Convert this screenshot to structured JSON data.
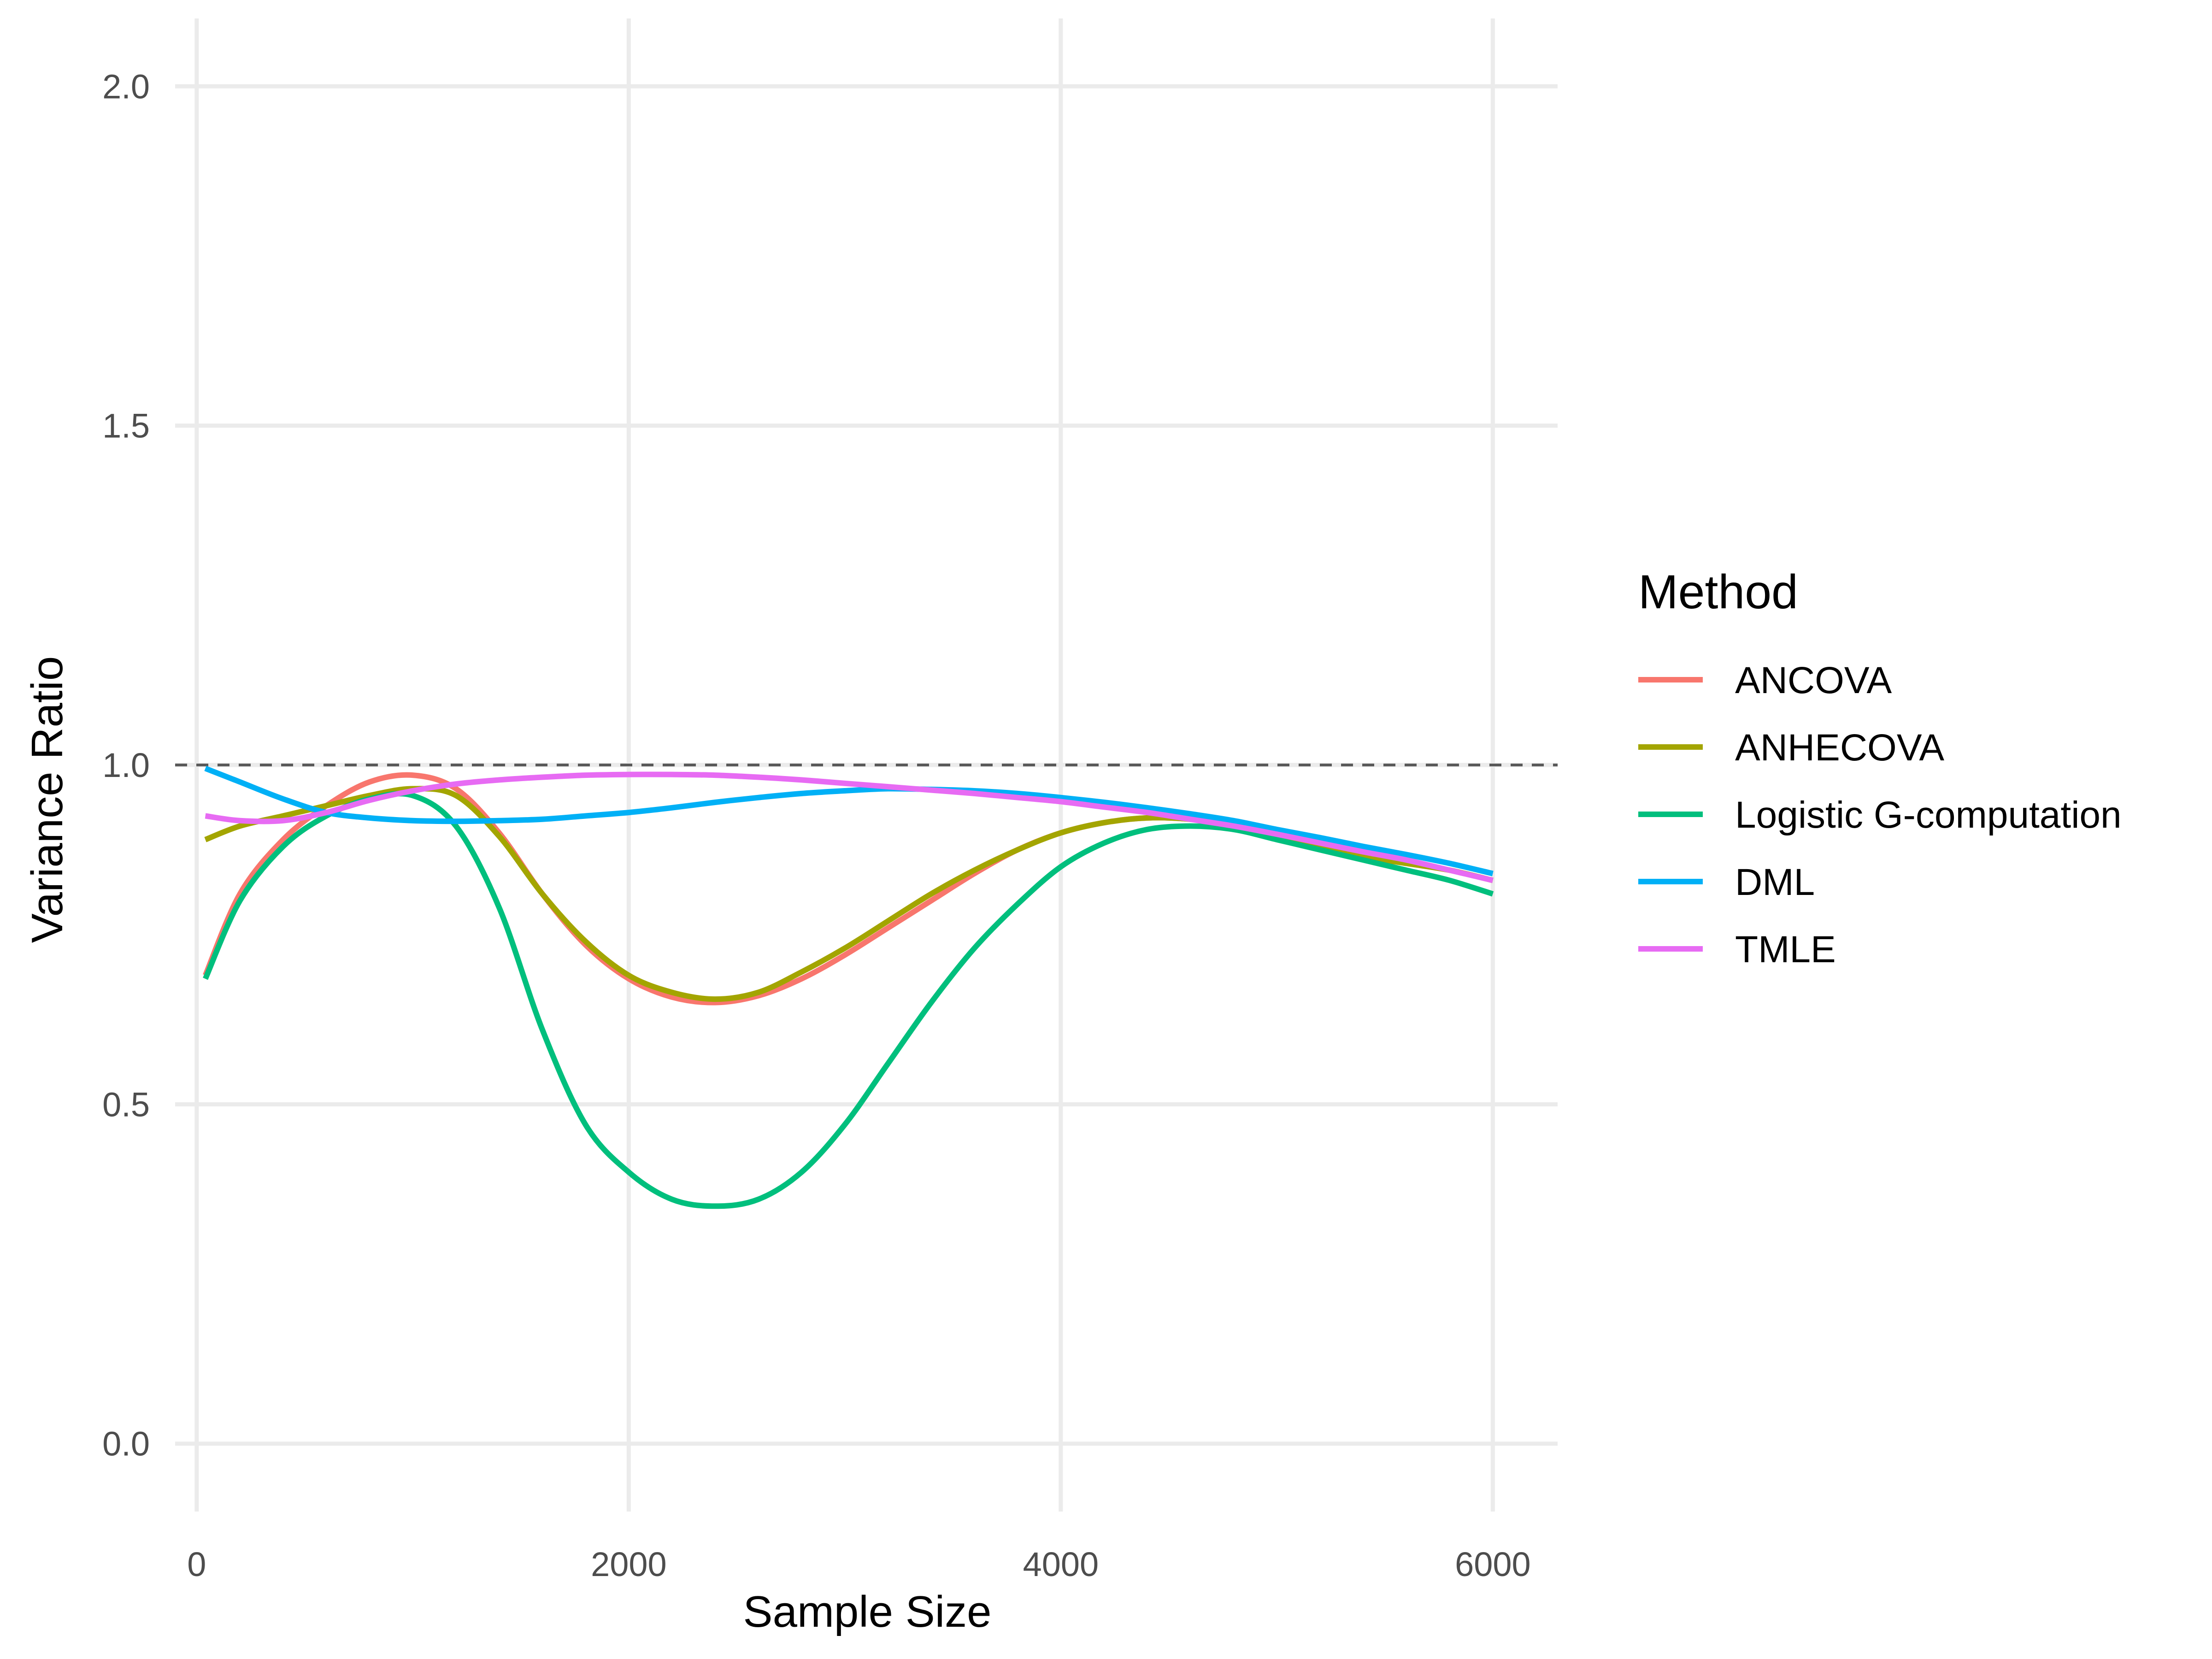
{
  "chart_data": {
    "type": "line",
    "title": "",
    "xlabel": "Sample Size",
    "ylabel": "Variance Ratio",
    "xlim": [
      -100,
      6300
    ],
    "ylim": [
      -0.1,
      2.1
    ],
    "x_ticks": [
      0,
      2000,
      4000,
      6000
    ],
    "x_tick_labels": [
      "0",
      "2000",
      "4000",
      "6000"
    ],
    "y_ticks": [
      0.0,
      0.5,
      1.0,
      1.5,
      2.0
    ],
    "y_tick_labels": [
      "0.0",
      "0.5",
      "1.0",
      "1.5",
      "2.0"
    ],
    "grid": true,
    "reference_line": {
      "y": 1.0,
      "style": "dashed",
      "color": "#5a5a5a"
    },
    "legend": {
      "title": "Method",
      "position": "right"
    },
    "series": [
      {
        "name": "ANCOVA",
        "color": "#F8766D",
        "points": [
          [
            40,
            0.69
          ],
          [
            200,
            0.81
          ],
          [
            400,
            0.89
          ],
          [
            600,
            0.94
          ],
          [
            800,
            0.975
          ],
          [
            1000,
            0.985
          ],
          [
            1200,
            0.965
          ],
          [
            1400,
            0.9
          ],
          [
            1600,
            0.81
          ],
          [
            1800,
            0.735
          ],
          [
            2000,
            0.685
          ],
          [
            2200,
            0.658
          ],
          [
            2400,
            0.65
          ],
          [
            2600,
            0.66
          ],
          [
            2800,
            0.685
          ],
          [
            3000,
            0.72
          ],
          [
            3200,
            0.76
          ],
          [
            3400,
            0.8
          ],
          [
            3600,
            0.84
          ],
          [
            3800,
            0.875
          ],
          [
            4000,
            0.9
          ],
          [
            4200,
            0.915
          ],
          [
            4400,
            0.922
          ],
          [
            4600,
            0.92
          ],
          [
            4800,
            0.91
          ],
          [
            5000,
            0.895
          ],
          [
            5200,
            0.88
          ],
          [
            5400,
            0.865
          ],
          [
            5600,
            0.855
          ],
          [
            5800,
            0.845
          ],
          [
            6000,
            0.83
          ]
        ]
      },
      {
        "name": "ANHECOVA",
        "color": "#A3A500",
        "points": [
          [
            40,
            0.89
          ],
          [
            200,
            0.91
          ],
          [
            400,
            0.925
          ],
          [
            600,
            0.94
          ],
          [
            800,
            0.955
          ],
          [
            1000,
            0.965
          ],
          [
            1200,
            0.955
          ],
          [
            1400,
            0.895
          ],
          [
            1600,
            0.81
          ],
          [
            1800,
            0.74
          ],
          [
            2000,
            0.69
          ],
          [
            2200,
            0.665
          ],
          [
            2400,
            0.655
          ],
          [
            2600,
            0.665
          ],
          [
            2800,
            0.695
          ],
          [
            3000,
            0.73
          ],
          [
            3200,
            0.77
          ],
          [
            3400,
            0.81
          ],
          [
            3600,
            0.845
          ],
          [
            3800,
            0.875
          ],
          [
            4000,
            0.9
          ],
          [
            4200,
            0.915
          ],
          [
            4400,
            0.922
          ],
          [
            4600,
            0.92
          ],
          [
            4800,
            0.91
          ],
          [
            5000,
            0.895
          ],
          [
            5200,
            0.88
          ],
          [
            5400,
            0.865
          ],
          [
            5600,
            0.855
          ],
          [
            5800,
            0.845
          ],
          [
            6000,
            0.83
          ]
        ]
      },
      {
        "name": "Logistic G-computation",
        "color": "#00BF7D",
        "points": [
          [
            40,
            0.685
          ],
          [
            200,
            0.8
          ],
          [
            400,
            0.88
          ],
          [
            600,
            0.925
          ],
          [
            800,
            0.95
          ],
          [
            1000,
            0.955
          ],
          [
            1200,
            0.91
          ],
          [
            1400,
            0.79
          ],
          [
            1600,
            0.61
          ],
          [
            1800,
            0.47
          ],
          [
            2000,
            0.4
          ],
          [
            2200,
            0.36
          ],
          [
            2400,
            0.35
          ],
          [
            2600,
            0.36
          ],
          [
            2800,
            0.4
          ],
          [
            3000,
            0.47
          ],
          [
            3200,
            0.56
          ],
          [
            3400,
            0.65
          ],
          [
            3600,
            0.73
          ],
          [
            3800,
            0.795
          ],
          [
            4000,
            0.85
          ],
          [
            4200,
            0.885
          ],
          [
            4400,
            0.905
          ],
          [
            4600,
            0.91
          ],
          [
            4800,
            0.905
          ],
          [
            5000,
            0.89
          ],
          [
            5200,
            0.875
          ],
          [
            5400,
            0.86
          ],
          [
            5600,
            0.845
          ],
          [
            5800,
            0.83
          ],
          [
            6000,
            0.81
          ]
        ]
      },
      {
        "name": "DML",
        "color": "#00B0F6",
        "points": [
          [
            40,
            0.995
          ],
          [
            200,
            0.975
          ],
          [
            400,
            0.95
          ],
          [
            600,
            0.93
          ],
          [
            800,
            0.922
          ],
          [
            1000,
            0.918
          ],
          [
            1200,
            0.917
          ],
          [
            1400,
            0.918
          ],
          [
            1600,
            0.92
          ],
          [
            1800,
            0.925
          ],
          [
            2000,
            0.93
          ],
          [
            2200,
            0.937
          ],
          [
            2400,
            0.945
          ],
          [
            2600,
            0.952
          ],
          [
            2800,
            0.958
          ],
          [
            3000,
            0.962
          ],
          [
            3200,
            0.965
          ],
          [
            3400,
            0.964
          ],
          [
            3600,
            0.962
          ],
          [
            3800,
            0.958
          ],
          [
            4000,
            0.952
          ],
          [
            4200,
            0.945
          ],
          [
            4400,
            0.937
          ],
          [
            4600,
            0.928
          ],
          [
            4800,
            0.918
          ],
          [
            5000,
            0.905
          ],
          [
            5200,
            0.893
          ],
          [
            5400,
            0.88
          ],
          [
            5600,
            0.868
          ],
          [
            5800,
            0.855
          ],
          [
            6000,
            0.84
          ]
        ]
      },
      {
        "name": "TMLE",
        "color": "#E76BF3",
        "points": [
          [
            40,
            0.925
          ],
          [
            200,
            0.918
          ],
          [
            400,
            0.918
          ],
          [
            600,
            0.93
          ],
          [
            800,
            0.948
          ],
          [
            1000,
            0.962
          ],
          [
            1200,
            0.972
          ],
          [
            1400,
            0.978
          ],
          [
            1600,
            0.982
          ],
          [
            1800,
            0.985
          ],
          [
            2000,
            0.986
          ],
          [
            2200,
            0.986
          ],
          [
            2400,
            0.985
          ],
          [
            2600,
            0.982
          ],
          [
            2800,
            0.978
          ],
          [
            3000,
            0.973
          ],
          [
            3200,
            0.968
          ],
          [
            3400,
            0.963
          ],
          [
            3600,
            0.958
          ],
          [
            3800,
            0.952
          ],
          [
            4000,
            0.946
          ],
          [
            4200,
            0.938
          ],
          [
            4400,
            0.93
          ],
          [
            4600,
            0.92
          ],
          [
            4800,
            0.91
          ],
          [
            5000,
            0.898
          ],
          [
            5200,
            0.885
          ],
          [
            5400,
            0.872
          ],
          [
            5600,
            0.86
          ],
          [
            5800,
            0.845
          ],
          [
            6000,
            0.83
          ]
        ]
      }
    ]
  }
}
